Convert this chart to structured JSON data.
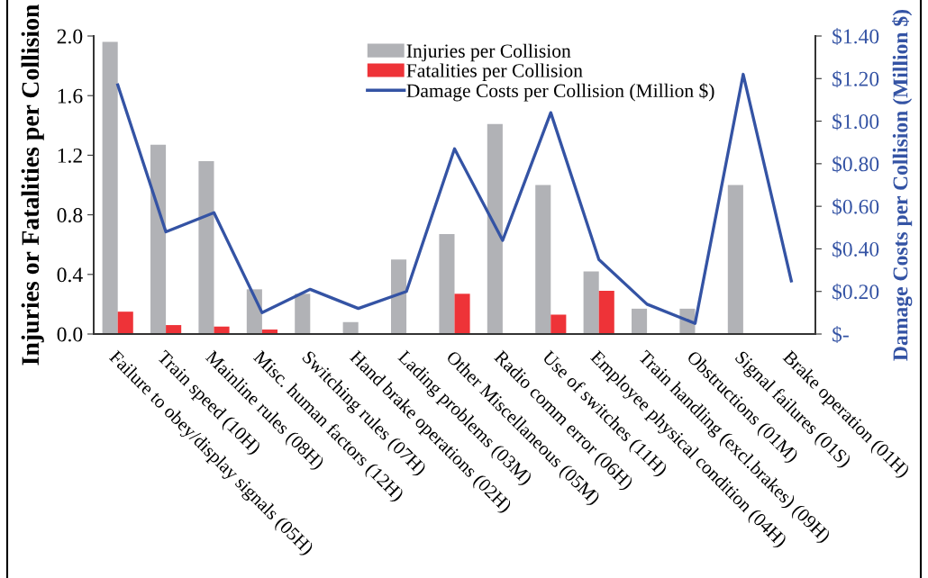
{
  "chart_data": {
    "type": "bar",
    "categories": [
      "Failure to obey/display signals (05H)",
      "Train speed (10H)",
      "Mainline rules (08H)",
      "Misc. human factors (12H)",
      "Switching rules (07H)",
      "Hand brake operations (02H)",
      "Lading problems (03M)",
      "Other Miscellaneous (05M)",
      "Radio comm error (06H)",
      "Use of switches (11H)",
      "Employee physical condition (04H)",
      "Train handling (excl.brakes) (09H)",
      "Obstructions (01M)",
      "Signal failures (01S)",
      "Brake operation (01H)"
    ],
    "series": [
      {
        "name": "Injuries per Collision",
        "color": "#b1b2b6",
        "values": [
          1.96,
          1.27,
          1.16,
          0.3,
          0.27,
          0.08,
          0.5,
          0.67,
          1.41,
          1.0,
          0.42,
          0.17,
          0.17,
          1.0,
          0
        ]
      },
      {
        "name": "Fatalities per Collision",
        "color": "#ee3338",
        "values": [
          0.15,
          0.06,
          0.05,
          0.03,
          0,
          0,
          0,
          0.27,
          0,
          0.13,
          0.29,
          0,
          0,
          0,
          0
        ]
      },
      {
        "name": "Damage Costs per Collision (Million $)",
        "type": "line",
        "axis": "y2",
        "color": "#3453a4",
        "values": [
          1.17,
          0.48,
          0.57,
          0.1,
          0.21,
          0.12,
          0.2,
          0.87,
          0.44,
          1.04,
          0.35,
          0.14,
          0.05,
          1.22,
          0.25
        ]
      }
    ],
    "ylabel": "Injuries or Fatalities per Collision",
    "y2label": "Damage Costs per Collision (Million $)",
    "ylim": [
      0,
      2.0
    ],
    "yticks": [
      {
        "value": 0,
        "label": "0.0"
      },
      0.4,
      0.8,
      1.2,
      1.6,
      {
        "value": 2,
        "label": "2.0"
      }
    ],
    "y2lim": [
      0,
      1.4
    ],
    "y2ticks": [
      {
        "value": 0,
        "label": "$-"
      },
      {
        "value": 0.2,
        "label": "$0.20"
      },
      {
        "value": 0.4,
        "label": "$0.40"
      },
      {
        "value": 0.6,
        "label": "$0.60"
      },
      {
        "value": 0.8,
        "label": "$0.80"
      },
      {
        "value": 1.0,
        "label": "$1.00"
      },
      {
        "value": 1.2,
        "label": "$1.20"
      },
      {
        "value": 1.4,
        "label": "$1.40"
      }
    ],
    "legend": "top",
    "grid": false,
    "line_style": "solid"
  }
}
